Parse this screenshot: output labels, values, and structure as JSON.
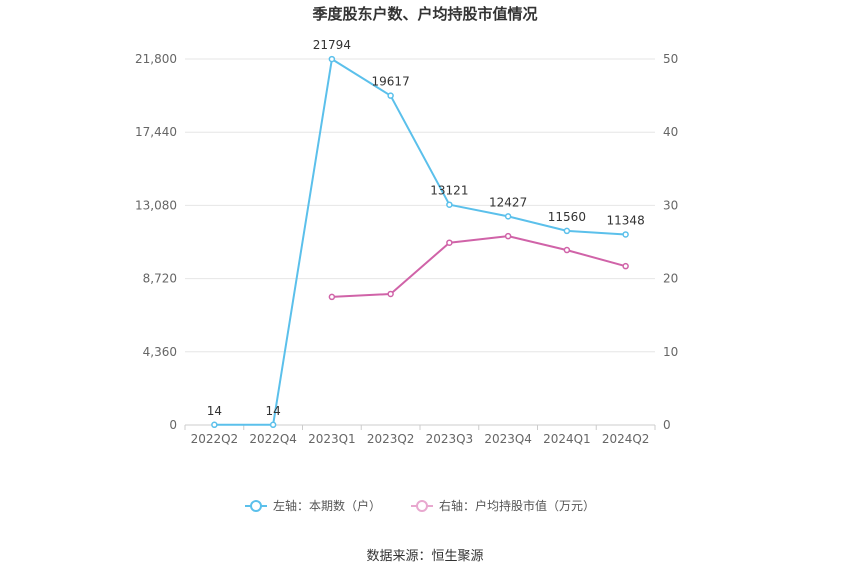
{
  "chart_data": {
    "type": "line",
    "title": "季度股东户数、户均持股市值情况",
    "categories": [
      "2022Q2",
      "2022Q4",
      "2023Q1",
      "2023Q2",
      "2023Q3",
      "2023Q4",
      "2024Q1",
      "2024Q2"
    ],
    "y_left": {
      "ticks": [
        "0",
        "4,360",
        "8,720",
        "13,080",
        "17,440",
        "21,800"
      ],
      "min": 0,
      "max": 21800
    },
    "y_right": {
      "ticks": [
        "0",
        "10",
        "20",
        "30",
        "40",
        "50"
      ],
      "min": 0,
      "max": 50
    },
    "series": [
      {
        "name": "左轴：本期数（户）",
        "axis": "left",
        "color": "#5BC0EB",
        "values": [
          14,
          14,
          21794,
          19617,
          13121,
          12427,
          11560,
          11348
        ],
        "labels": [
          "14",
          "14",
          "21794",
          "19617",
          "13121",
          "12427",
          "11560",
          "11348"
        ]
      },
      {
        "name": "右轴：户均持股市值（万元）",
        "axis": "right",
        "color": "#D063A8",
        "values": [
          null,
          null,
          17.5,
          17.9,
          24.9,
          25.8,
          23.9,
          21.7
        ]
      }
    ],
    "legend_position": "bottom",
    "grid": true
  },
  "footer": {
    "source": "数据来源：恒生聚源"
  }
}
